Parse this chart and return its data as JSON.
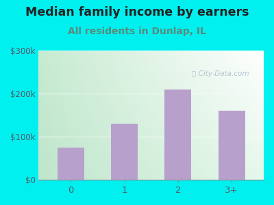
{
  "categories": [
    "0",
    "1",
    "2",
    "3+"
  ],
  "values": [
    75000,
    130000,
    210000,
    160000
  ],
  "bar_color": "#b8a0cc",
  "title": "Median family income by earners",
  "subtitle": "All residents in Dunlap, IL",
  "title_fontsize": 12.5,
  "subtitle_fontsize": 10,
  "title_color": "#222222",
  "subtitle_color": "#5a8a7a",
  "outer_bg": "#00f0f0",
  "plot_bg_topleft": "#d0ebd8",
  "plot_bg_topright": "#ffffff",
  "plot_bg_bottomleft": "#c8e8d0",
  "plot_bg_bottomright": "#e8f5ea",
  "ylim": [
    0,
    300000
  ],
  "yticks": [
    0,
    100000,
    200000,
    300000
  ],
  "ytick_labels": [
    "$0",
    "$100k",
    "$200k",
    "$300k"
  ],
  "watermark": "City-Data.com",
  "watermark_color": "#aabbcc",
  "axis_color": "#888888",
  "tick_color": "#555566"
}
